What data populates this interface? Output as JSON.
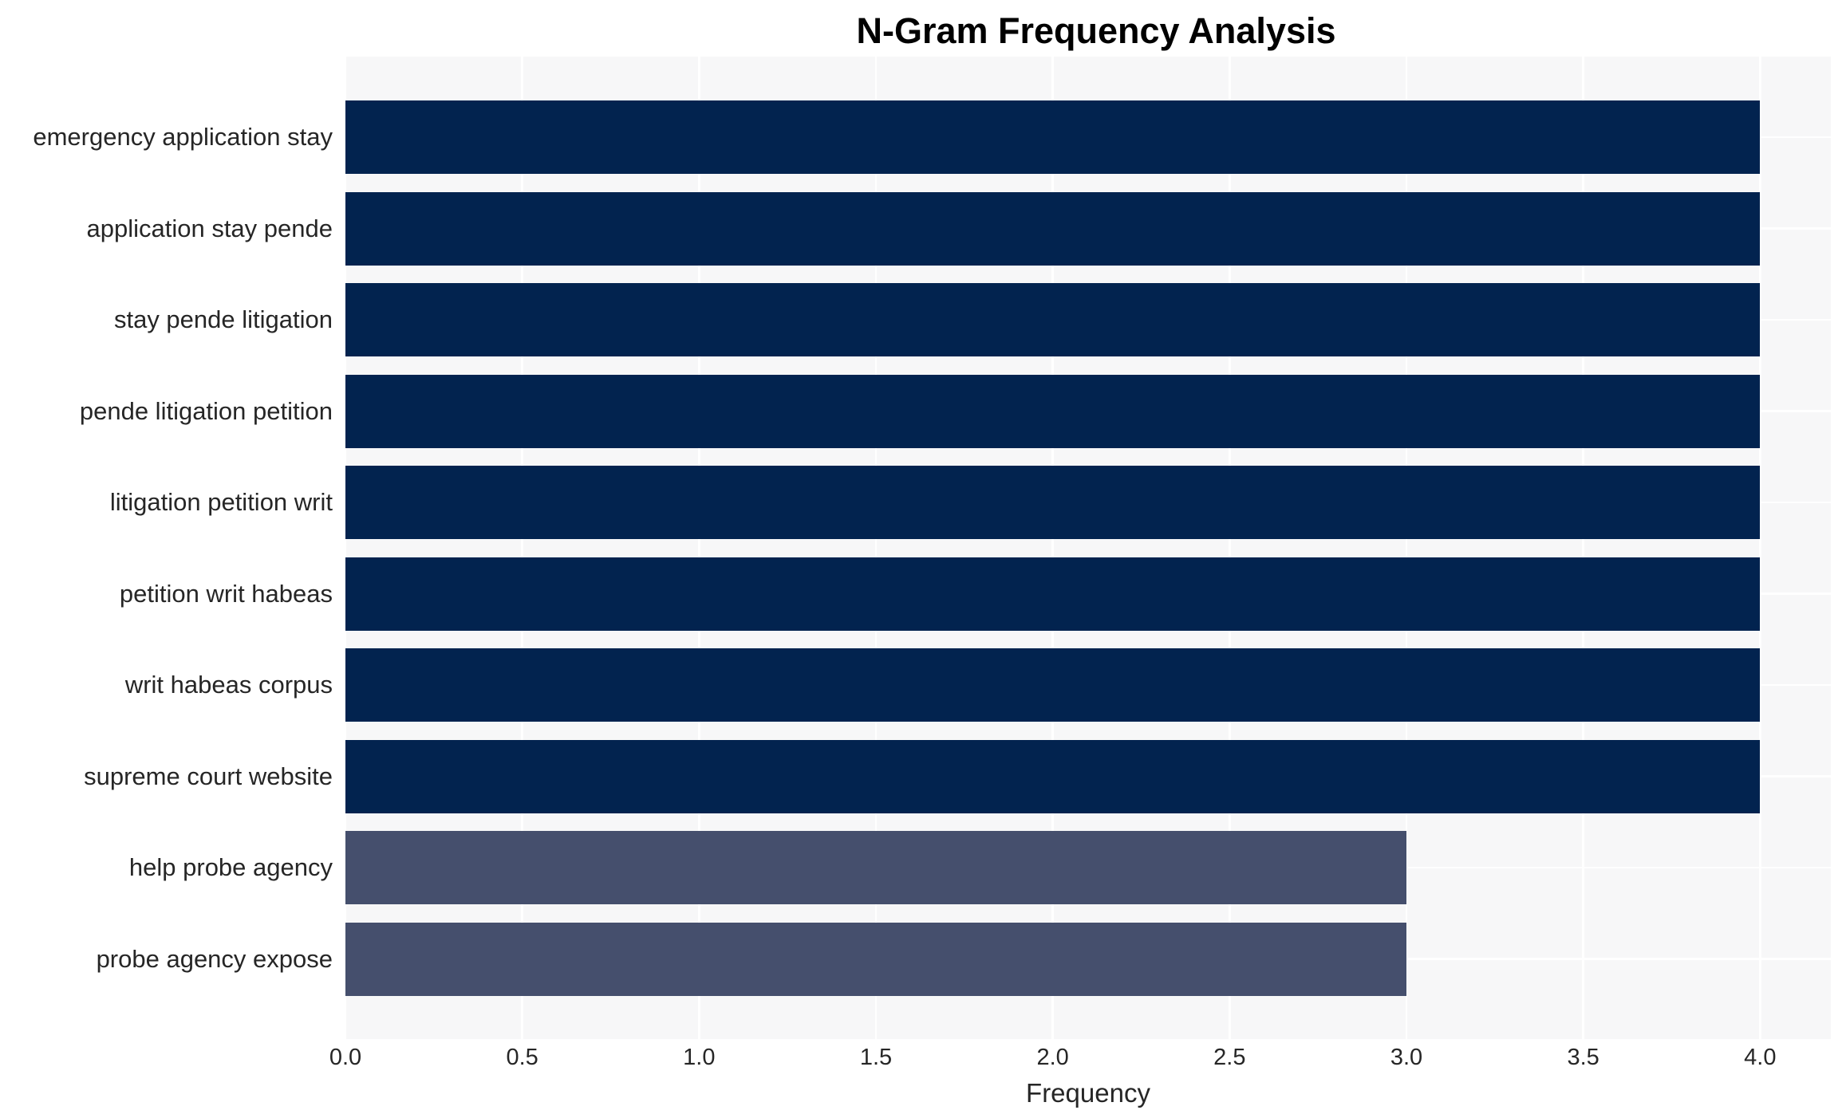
{
  "chart_data": {
    "type": "bar",
    "orientation": "horizontal",
    "title": "N-Gram Frequency Analysis",
    "xlabel": "Frequency",
    "ylabel": "",
    "categories": [
      "emergency application stay",
      "application stay pende",
      "stay pende litigation",
      "pende litigation petition",
      "litigation petition writ",
      "petition writ habeas",
      "writ habeas corpus",
      "supreme court website",
      "help probe agency",
      "probe agency expose"
    ],
    "values": [
      4,
      4,
      4,
      4,
      4,
      4,
      4,
      4,
      3,
      3
    ],
    "xlim": [
      0,
      4.2
    ],
    "xticks": [
      0.0,
      0.5,
      1.0,
      1.5,
      2.0,
      2.5,
      3.0,
      3.5,
      4.0
    ],
    "grid": true,
    "legend": false,
    "bar_colors": [
      "#02234F",
      "#02234F",
      "#02234F",
      "#02234F",
      "#02234F",
      "#02234F",
      "#02234F",
      "#02234F",
      "#454F6D",
      "#454F6D"
    ],
    "colors": {
      "figure_background": "#FFFFFF",
      "plot_background": "#F7F7F8",
      "gridline": "#FFFFFF",
      "tick_label": "#262626",
      "title": "#000000"
    }
  }
}
